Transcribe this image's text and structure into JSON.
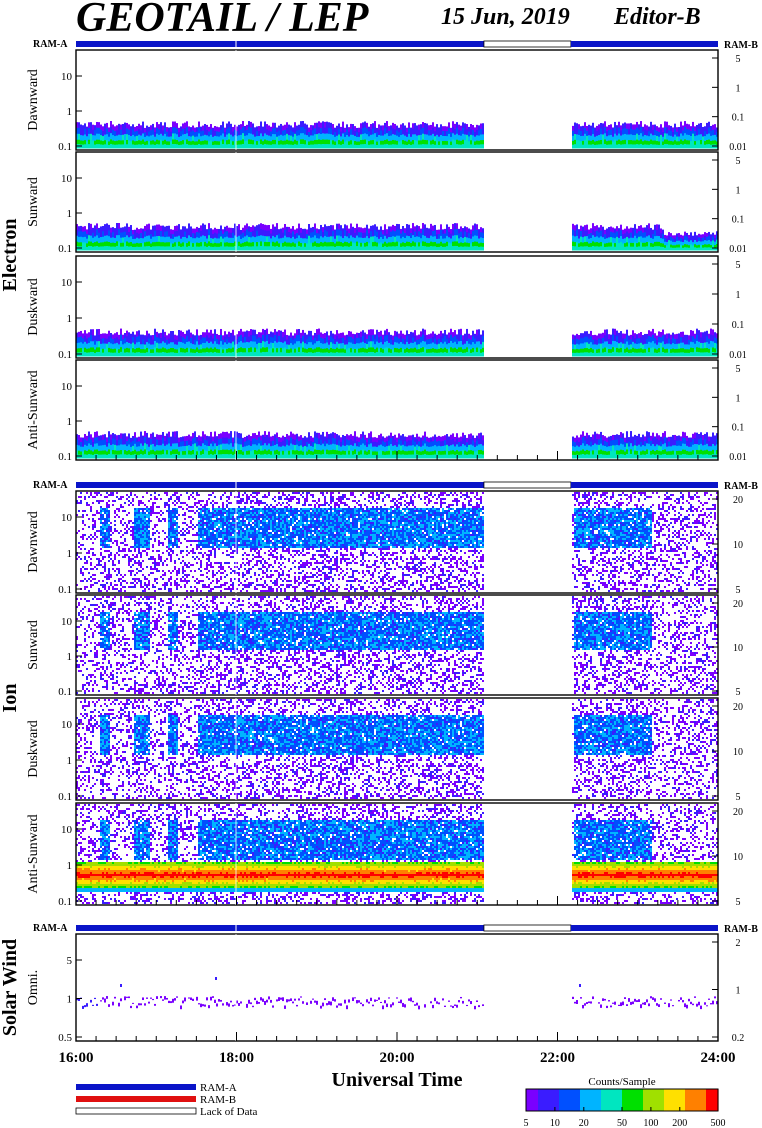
{
  "header": {
    "title": "GEOTAIL / LEP",
    "date": "15 Jun, 2019",
    "editor": "Editor-B"
  },
  "colors": {
    "ram_a": "#0a14c8",
    "ram_b": "#e01010",
    "lack": "#ffffff",
    "colorbar": [
      "#7a00ff",
      "#3a1cff",
      "#0050ff",
      "#00b4ff",
      "#00e6c0",
      "#00e000",
      "#a0e000",
      "#ffe000",
      "#ff8000",
      "#ff0000"
    ]
  },
  "chart_data": {
    "type": "heatmap",
    "time_axis": {
      "start": "16:00",
      "end": "24:00",
      "tick_labels": [
        "16:00",
        "18:00",
        "20:00",
        "22:00",
        "24:00"
      ],
      "xlabel": "Universal Time"
    },
    "bar_labels": {
      "left": "RAM-A",
      "right": "RAM-B"
    },
    "mode_bar_segments": [
      {
        "start": "16:00",
        "end": "21:05",
        "mode": "RAM-A"
      },
      {
        "start": "21:05",
        "end": "22:10",
        "mode": "Lack of Data"
      },
      {
        "start": "22:10",
        "end": "24:00",
        "mode": "RAM-A"
      }
    ],
    "data_gap": {
      "start": "21:05",
      "end": "22:10"
    },
    "groups": [
      {
        "name": "Electron",
        "panels": [
          {
            "label": "Dawnward",
            "left_ticks": [
              "10",
              "1",
              "0.1"
            ],
            "right_ticks": [
              "5",
              "1",
              "0.1",
              "0.01"
            ]
          },
          {
            "label": "Sunward",
            "left_ticks": [
              "10",
              "1",
              "0.1"
            ],
            "right_ticks": [
              "5",
              "1",
              "0.1",
              "0.01"
            ]
          },
          {
            "label": "Duskward",
            "left_ticks": [
              "10",
              "1",
              "0.1"
            ],
            "right_ticks": [
              "5",
              "1",
              "0.1",
              "0.01"
            ]
          },
          {
            "label": "Anti-Sunward",
            "left_ticks": [
              "10",
              "1",
              "0.1"
            ],
            "right_ticks": [
              "5",
              "1",
              "0.1",
              "0.01"
            ]
          }
        ]
      },
      {
        "name": "Ion",
        "panels": [
          {
            "label": "Dawnward",
            "left_ticks": [
              "10",
              "1",
              "0.1"
            ],
            "right_ticks": [
              "20",
              "10",
              "5"
            ]
          },
          {
            "label": "Sunward",
            "left_ticks": [
              "10",
              "1",
              "0.1"
            ],
            "right_ticks": [
              "20",
              "10",
              "5"
            ]
          },
          {
            "label": "Duskward",
            "left_ticks": [
              "10",
              "1",
              "0.1"
            ],
            "right_ticks": [
              "20",
              "10",
              "5"
            ]
          },
          {
            "label": "Anti-Sunward",
            "left_ticks": [
              "10",
              "1",
              "0.1"
            ],
            "right_ticks": [
              "20",
              "10",
              "5"
            ]
          }
        ]
      },
      {
        "name": "Solar Wind",
        "panels": [
          {
            "label": "Omni.",
            "left_ticks": [
              "5",
              "1",
              "0.5"
            ],
            "right_ticks": [
              "2",
              "1",
              "0.2"
            ]
          }
        ]
      }
    ],
    "legend": [
      "RAM-A",
      "RAM-B",
      "Lack of Data"
    ],
    "colorbar": {
      "title": "Counts/Sample",
      "tick_labels": [
        "5",
        "10",
        "20",
        "50",
        "100",
        "200",
        "500"
      ]
    }
  }
}
